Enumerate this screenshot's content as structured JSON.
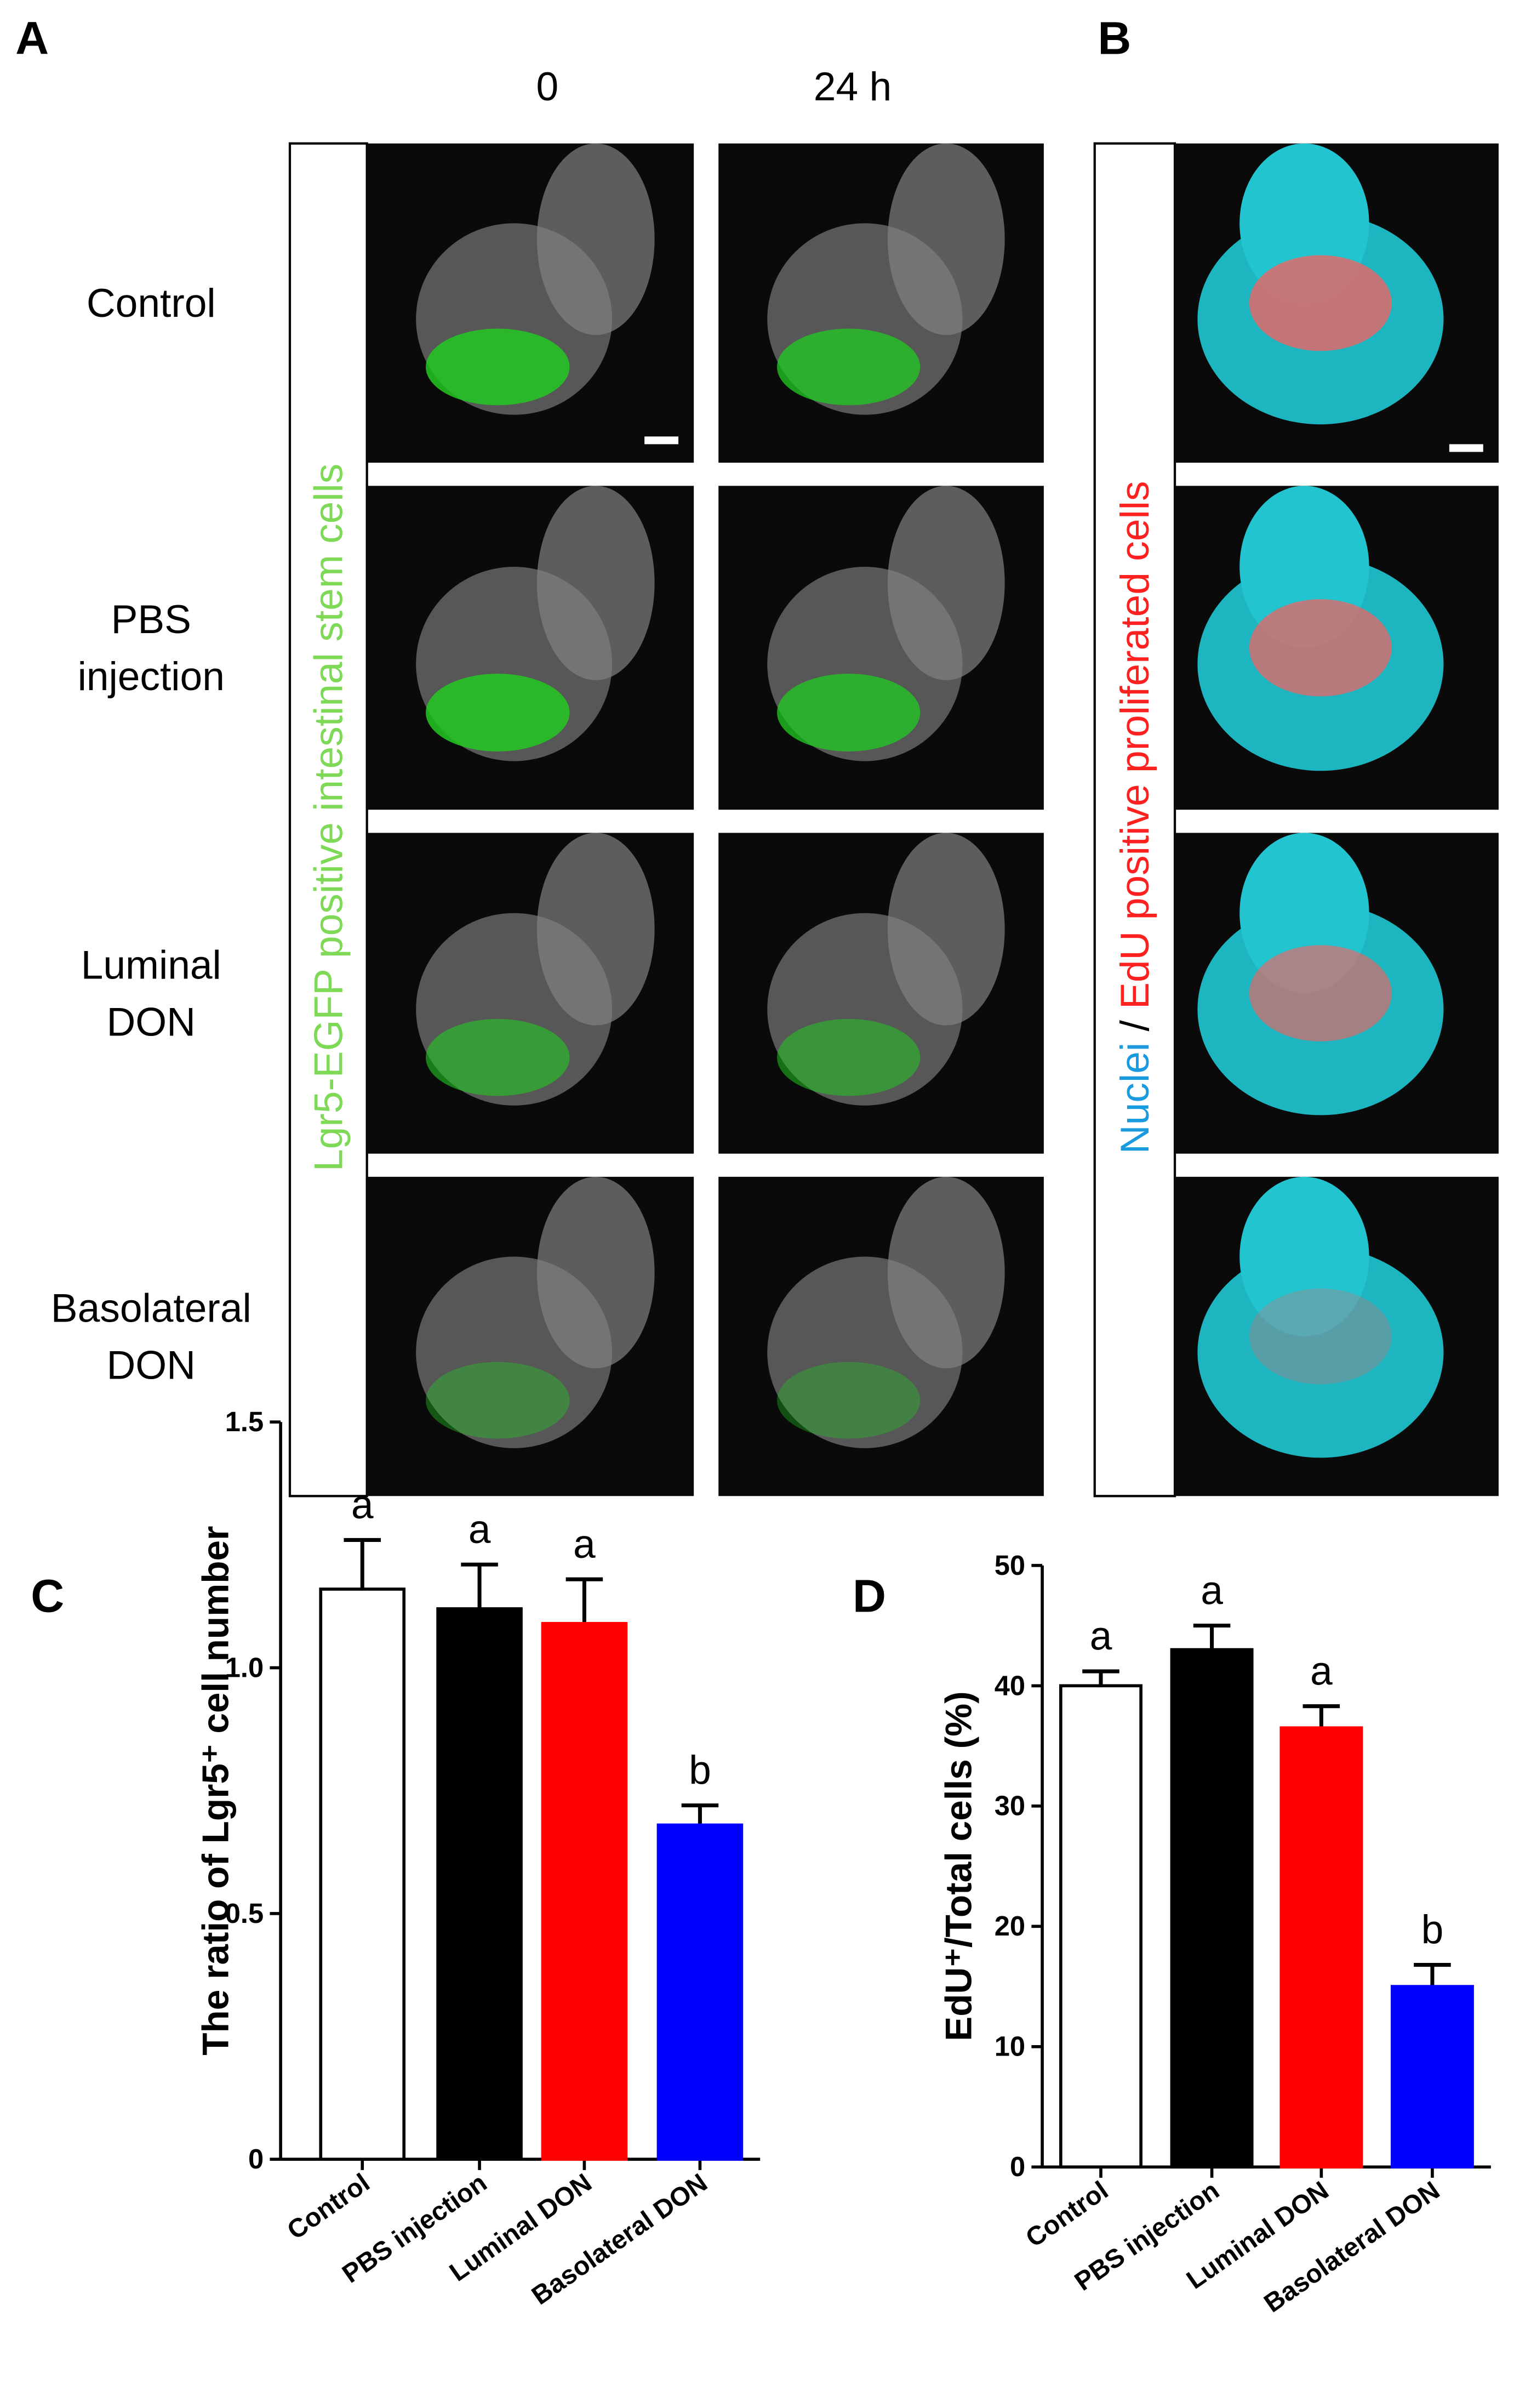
{
  "figure": {
    "panel_a": {
      "label": "A",
      "columns": [
        "0",
        "24 h"
      ],
      "rows": [
        [
          "Control"
        ],
        [
          "PBS",
          "injection"
        ],
        [
          "Luminal",
          "DON"
        ],
        [
          "Basolateral",
          "DON"
        ]
      ],
      "side_label": "Lgr5-EGFP positive  intestinal stem cells"
    },
    "panel_b": {
      "label": "B",
      "side_label_parts": [
        "Nuclei",
        " / ",
        "EdU positive proliferated cells"
      ]
    }
  },
  "chart_data": [
    {
      "type": "bar",
      "label": "C",
      "ylabel": "The ratio of Lgr5⁺ cell number",
      "categories": [
        "Control",
        "PBS injection",
        "Luminal DON",
        "Basolateral DON"
      ],
      "values": [
        1.16,
        1.12,
        1.09,
        0.68
      ],
      "errors": [
        0.1,
        0.09,
        0.09,
        0.04
      ],
      "colors": [
        "#ffffff",
        "#000000",
        "#ff0000",
        "#0000ff"
      ],
      "annotations": [
        "a",
        "a",
        "a",
        "b"
      ],
      "ylim": [
        0,
        1.5
      ],
      "yticks": [
        0,
        0.5,
        {
          "value": 1,
          "label": "1.0"
        },
        1.5
      ]
    },
    {
      "type": "bar",
      "label": "D",
      "ylabel": "EdU⁺/Total cells (%)",
      "categories": [
        "Control",
        "PBS injection",
        "Luminal DON",
        "Basolateral DON"
      ],
      "values": [
        40,
        43,
        36.5,
        15
      ],
      "errors": [
        1.2,
        2,
        1.8,
        1.8
      ],
      "colors": [
        "#ffffff",
        "#000000",
        "#ff0000",
        "#0000ff"
      ],
      "annotations": [
        "a",
        "a",
        "a",
        "b"
      ],
      "ylim": [
        0,
        50
      ],
      "yticks": [
        0,
        10,
        20,
        30,
        40,
        50
      ]
    }
  ]
}
